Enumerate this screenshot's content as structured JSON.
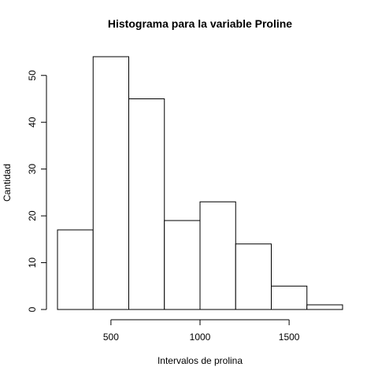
{
  "chart_data": {
    "type": "bar",
    "title": "Histograma para la variable Proline",
    "xlabel": "Intervalos de prolina",
    "ylabel": "Cantidad",
    "bins": [
      {
        "start": 200,
        "end": 400,
        "count": 17
      },
      {
        "start": 400,
        "end": 600,
        "count": 54
      },
      {
        "start": 600,
        "end": 800,
        "count": 45
      },
      {
        "start": 800,
        "end": 1000,
        "count": 19
      },
      {
        "start": 1000,
        "end": 1200,
        "count": 23
      },
      {
        "start": 1200,
        "end": 1400,
        "count": 14
      },
      {
        "start": 1400,
        "end": 1600,
        "count": 5
      },
      {
        "start": 1600,
        "end": 1800,
        "count": 1
      }
    ],
    "xlim": [
      200,
      1800
    ],
    "ylim": [
      0,
      54
    ],
    "x_ticks": [
      500,
      1000,
      1500
    ],
    "x_tick_labels": [
      "500",
      "1000",
      "1500"
    ],
    "y_ticks": [
      0,
      10,
      20,
      30,
      40,
      50
    ],
    "y_tick_labels": [
      "0",
      "10",
      "20",
      "30",
      "40",
      "50"
    ],
    "grid": false,
    "bar_fill": "#ffffff",
    "bar_stroke": "#000000"
  }
}
